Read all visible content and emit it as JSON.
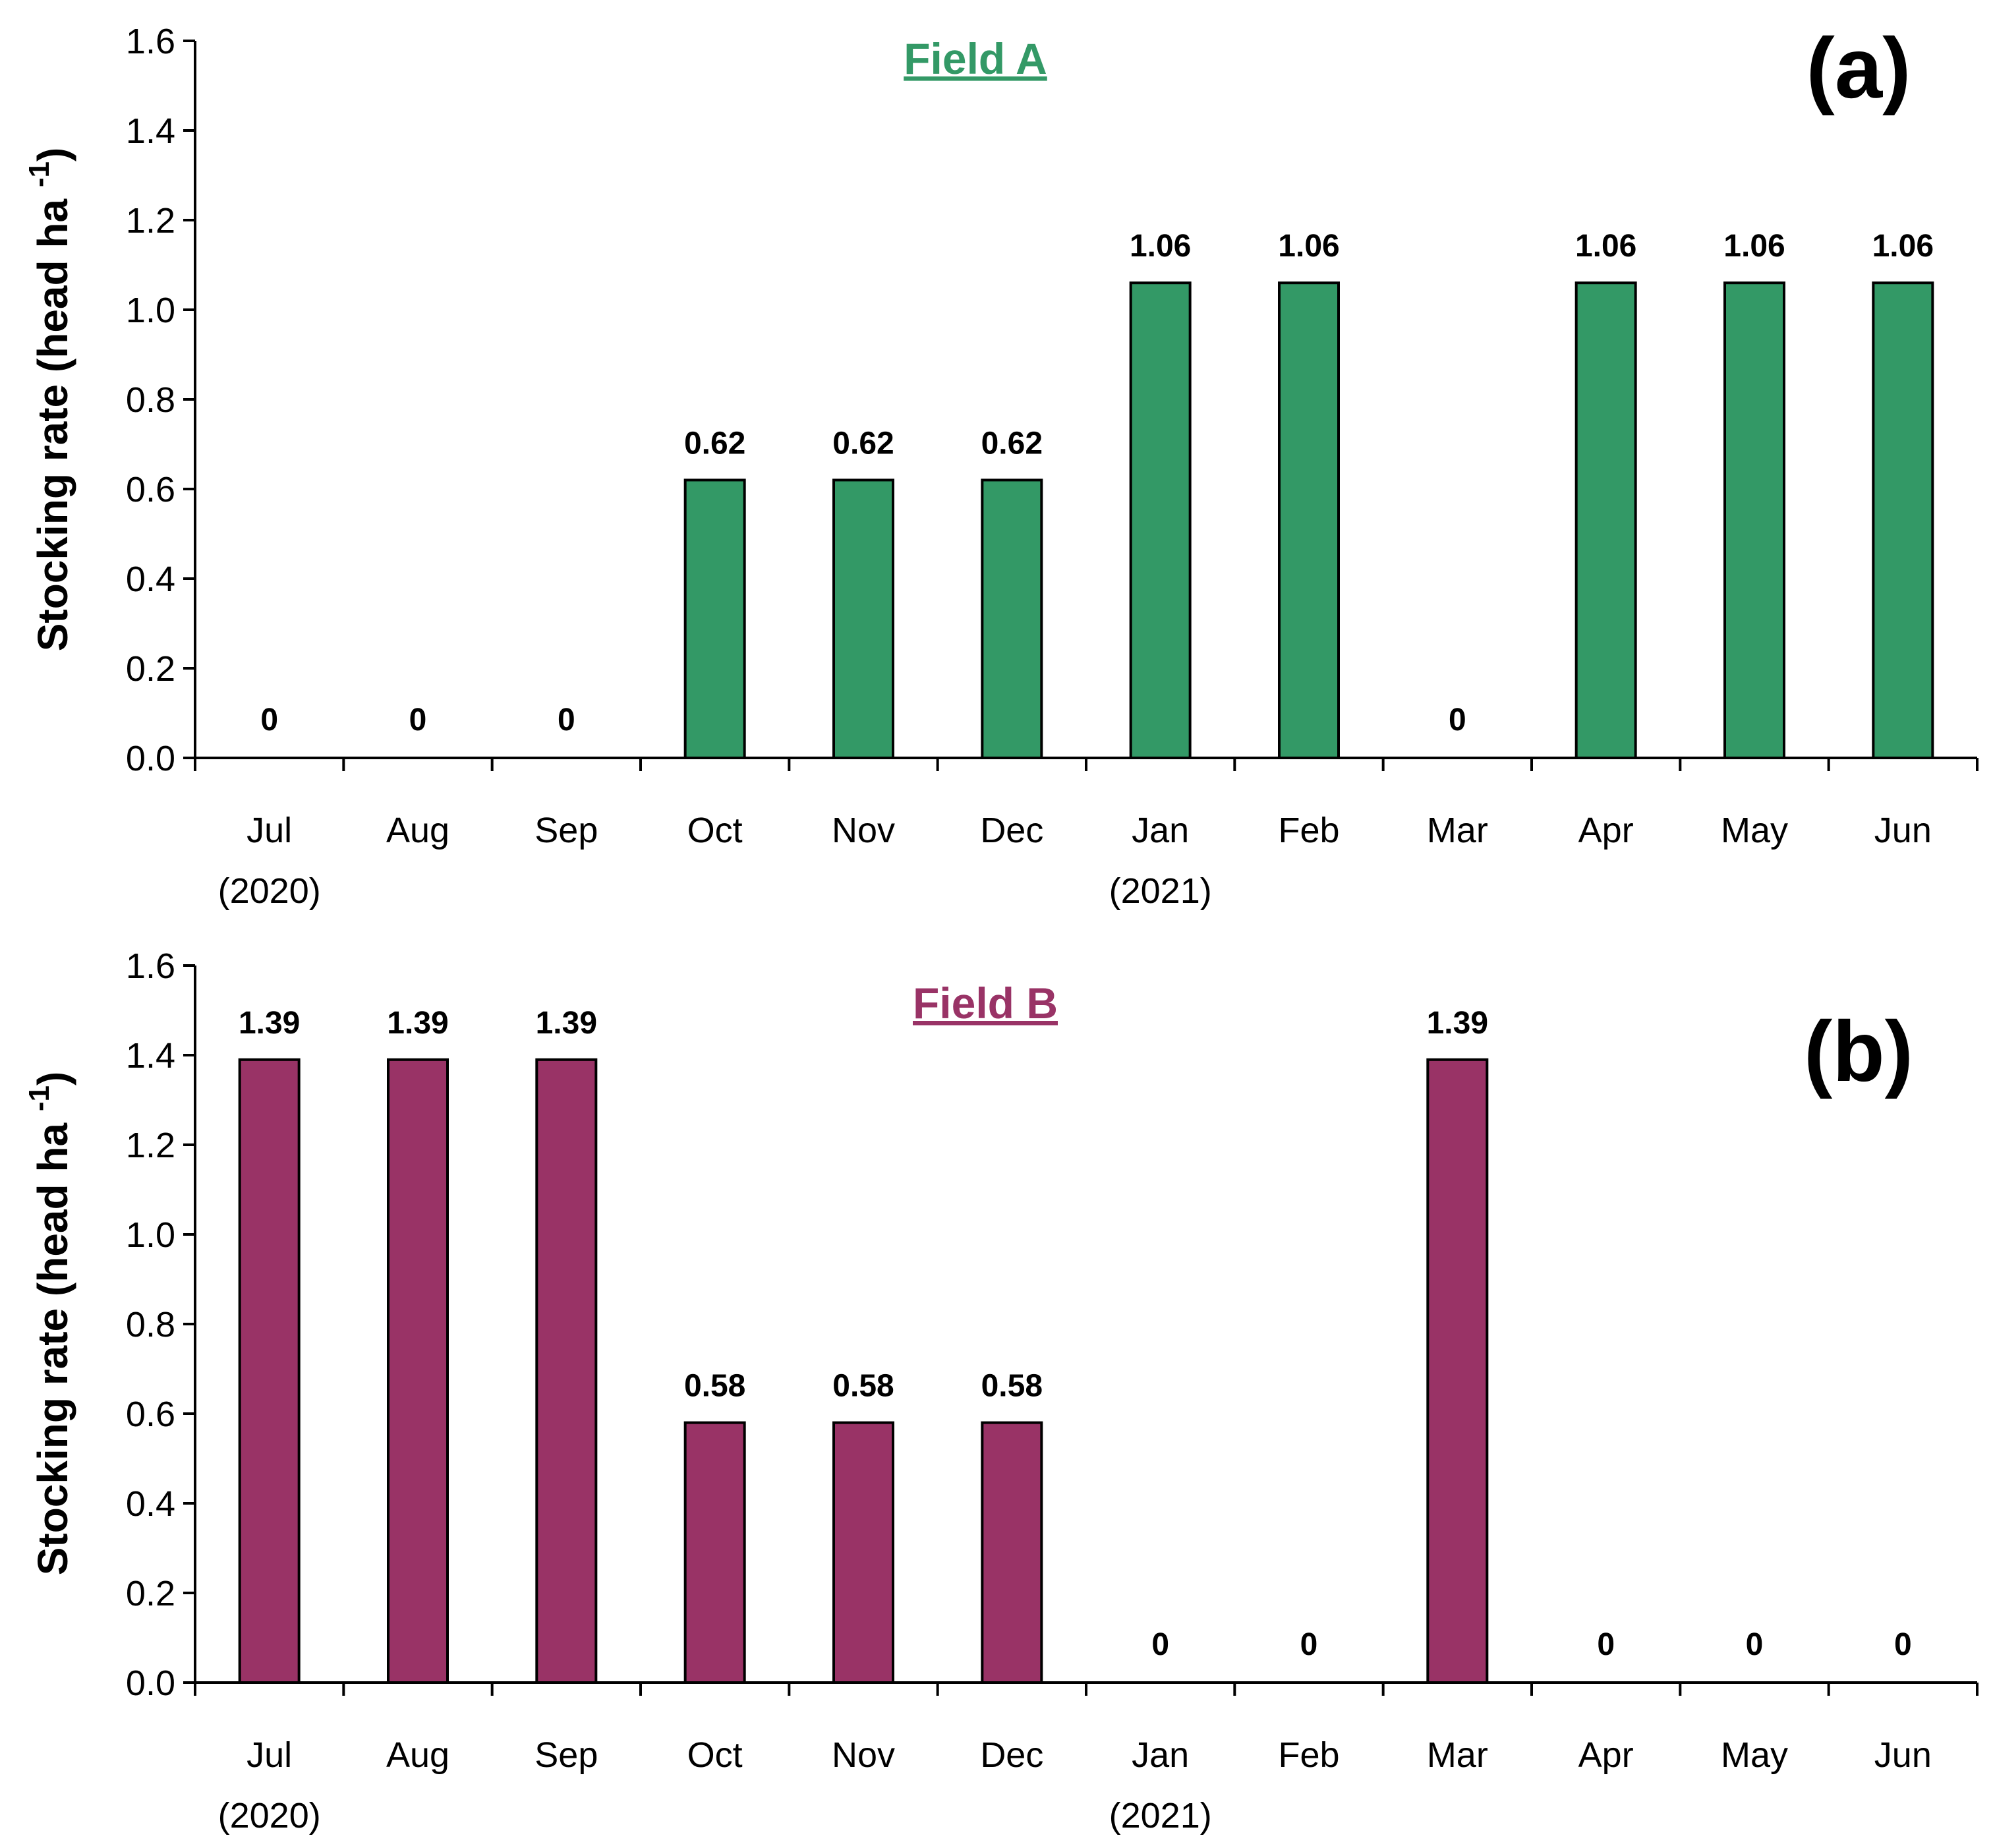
{
  "chart_data": [
    {
      "type": "bar",
      "panel_label": "(a)",
      "title": "Field A",
      "title_color": "#339966",
      "bar_color": "#339966",
      "ylabel": "Stocking rate (head ha",
      "ylabel_superscript": "-1",
      "ylabel_close": ")",
      "ylim": [
        0,
        1.6
      ],
      "yticks": [
        "0.0",
        "0.2",
        "0.4",
        "0.6",
        "0.8",
        "1.0",
        "1.2",
        "1.4",
        "1.6"
      ],
      "ytick_values": [
        0,
        0.2,
        0.4,
        0.6,
        0.8,
        1.0,
        1.2,
        1.4,
        1.6
      ],
      "categories": [
        "Jul",
        "Aug",
        "Sep",
        "Oct",
        "Nov",
        "Dec",
        "Jan",
        "Feb",
        "Mar",
        "Apr",
        "May",
        "Jun"
      ],
      "category_sublabels": [
        "(2020)",
        "",
        "",
        "",
        "",
        "",
        "(2021)",
        "",
        "",
        "",
        "",
        ""
      ],
      "values": [
        0,
        0,
        0,
        0.62,
        0.62,
        0.62,
        1.06,
        1.06,
        0,
        1.06,
        1.06,
        1.06
      ],
      "value_labels": [
        "0",
        "0",
        "0",
        "0.62",
        "0.62",
        "0.62",
        "1.06",
        "1.06",
        "0",
        "1.06",
        "1.06",
        "1.06"
      ]
    },
    {
      "type": "bar",
      "panel_label": "(b)",
      "title": "Field B",
      "title_color": "#993366",
      "bar_color": "#993366",
      "ylabel": "Stocking rate (head ha",
      "ylabel_superscript": "-1",
      "ylabel_close": ")",
      "ylim": [
        0,
        1.6
      ],
      "yticks": [
        "0.0",
        "0.2",
        "0.4",
        "0.6",
        "0.8",
        "1.0",
        "1.2",
        "1.4",
        "1.6"
      ],
      "ytick_values": [
        0,
        0.2,
        0.4,
        0.6,
        0.8,
        1.0,
        1.2,
        1.4,
        1.6
      ],
      "categories": [
        "Jul",
        "Aug",
        "Sep",
        "Oct",
        "Nov",
        "Dec",
        "Jan",
        "Feb",
        "Mar",
        "Apr",
        "May",
        "Jun"
      ],
      "category_sublabels": [
        "(2020)",
        "",
        "",
        "",
        "",
        "",
        "(2021)",
        "",
        "",
        "",
        "",
        ""
      ],
      "values": [
        1.39,
        1.39,
        1.39,
        0.58,
        0.58,
        0.58,
        0,
        0,
        1.39,
        0,
        0,
        0
      ],
      "value_labels": [
        "1.39",
        "1.39",
        "1.39",
        "0.58",
        "0.58",
        "0.58",
        "0",
        "0",
        "1.39",
        "0",
        "0",
        "0"
      ]
    }
  ]
}
